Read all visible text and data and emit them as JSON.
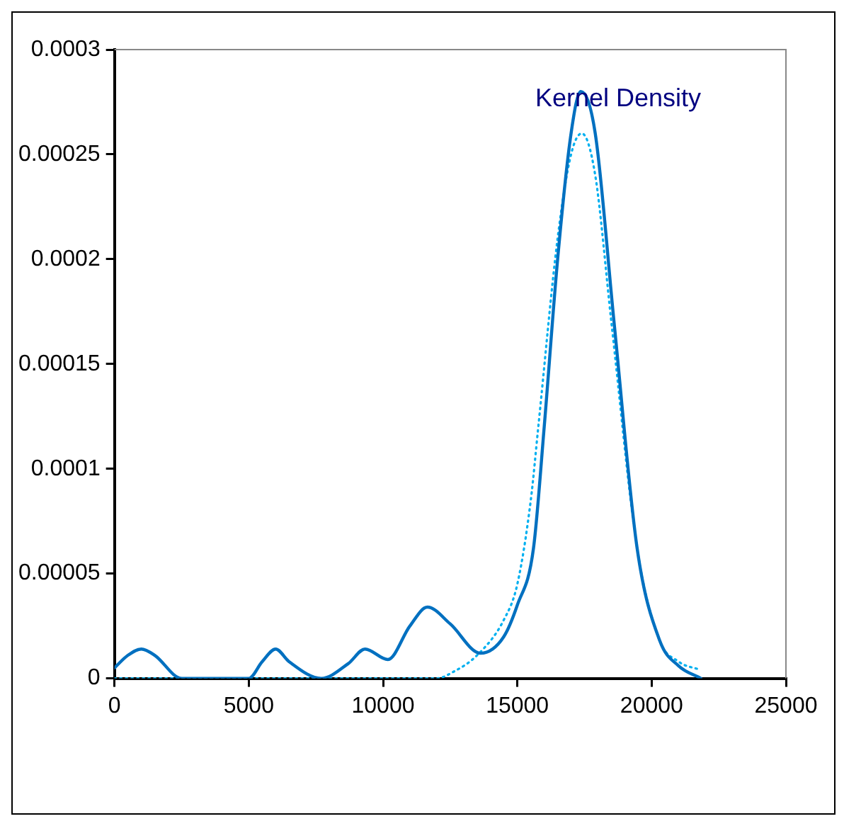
{
  "chart_data": {
    "type": "line",
    "annotations": [
      "Kernel Density"
    ],
    "xlim": [
      0,
      25000
    ],
    "xticks": [
      0,
      5000,
      10000,
      15000,
      20000,
      25000
    ],
    "ylim": [
      0,
      0.0003
    ],
    "yticks": [
      0,
      {
        "value": 5e-05,
        "label": "0.00005"
      },
      0.0001,
      0.00015,
      0.0002,
      0.00025,
      0.0003
    ],
    "grid": false,
    "marker": "none",
    "series": [
      {
        "color": "#0070c0",
        "line_style": "solid",
        "x": [
          0,
          500,
          1000,
          1500,
          2500,
          5000,
          5500,
          6000,
          6500,
          7700,
          8700,
          9330,
          10180,
          11000,
          11650,
          12500,
          13630,
          14500,
          15000,
          15600,
          16000,
          16500,
          17000,
          17360,
          17900,
          18600,
          19460,
          20300,
          21000,
          21830
        ],
        "values": [
          5e-06,
          1.1e-05,
          1.4e-05,
          1.1e-05,
          0,
          0,
          8e-06,
          1.4e-05,
          8e-06,
          0,
          7e-06,
          1.4e-05,
          9e-06,
          2.5e-05,
          3.4e-05,
          2.6e-05,
          1.2e-05,
          2e-05,
          3.5e-05,
          6.2e-05,
          0.00012,
          0.0002,
          0.00026,
          0.00028,
          0.00026,
          0.00017,
          6.2e-05,
          1.8e-05,
          6e-06,
          0
        ]
      },
      {
        "color": "#00b0f0",
        "line_style": "dotted",
        "x": [
          0,
          12000,
          12600,
          13500,
          14500,
          15000,
          15500,
          15780,
          16500,
          17000,
          17400,
          17900,
          18500,
          19460,
          20300,
          21000,
          21830
        ],
        "values": [
          0,
          0,
          3e-06,
          1.1e-05,
          2.8e-05,
          4.5e-05,
          8.5e-05,
          0.00012,
          0.00021,
          0.00025,
          0.00026,
          0.00024,
          0.00017,
          6.2e-05,
          1.8e-05,
          8e-06,
          4e-06
        ]
      }
    ]
  }
}
